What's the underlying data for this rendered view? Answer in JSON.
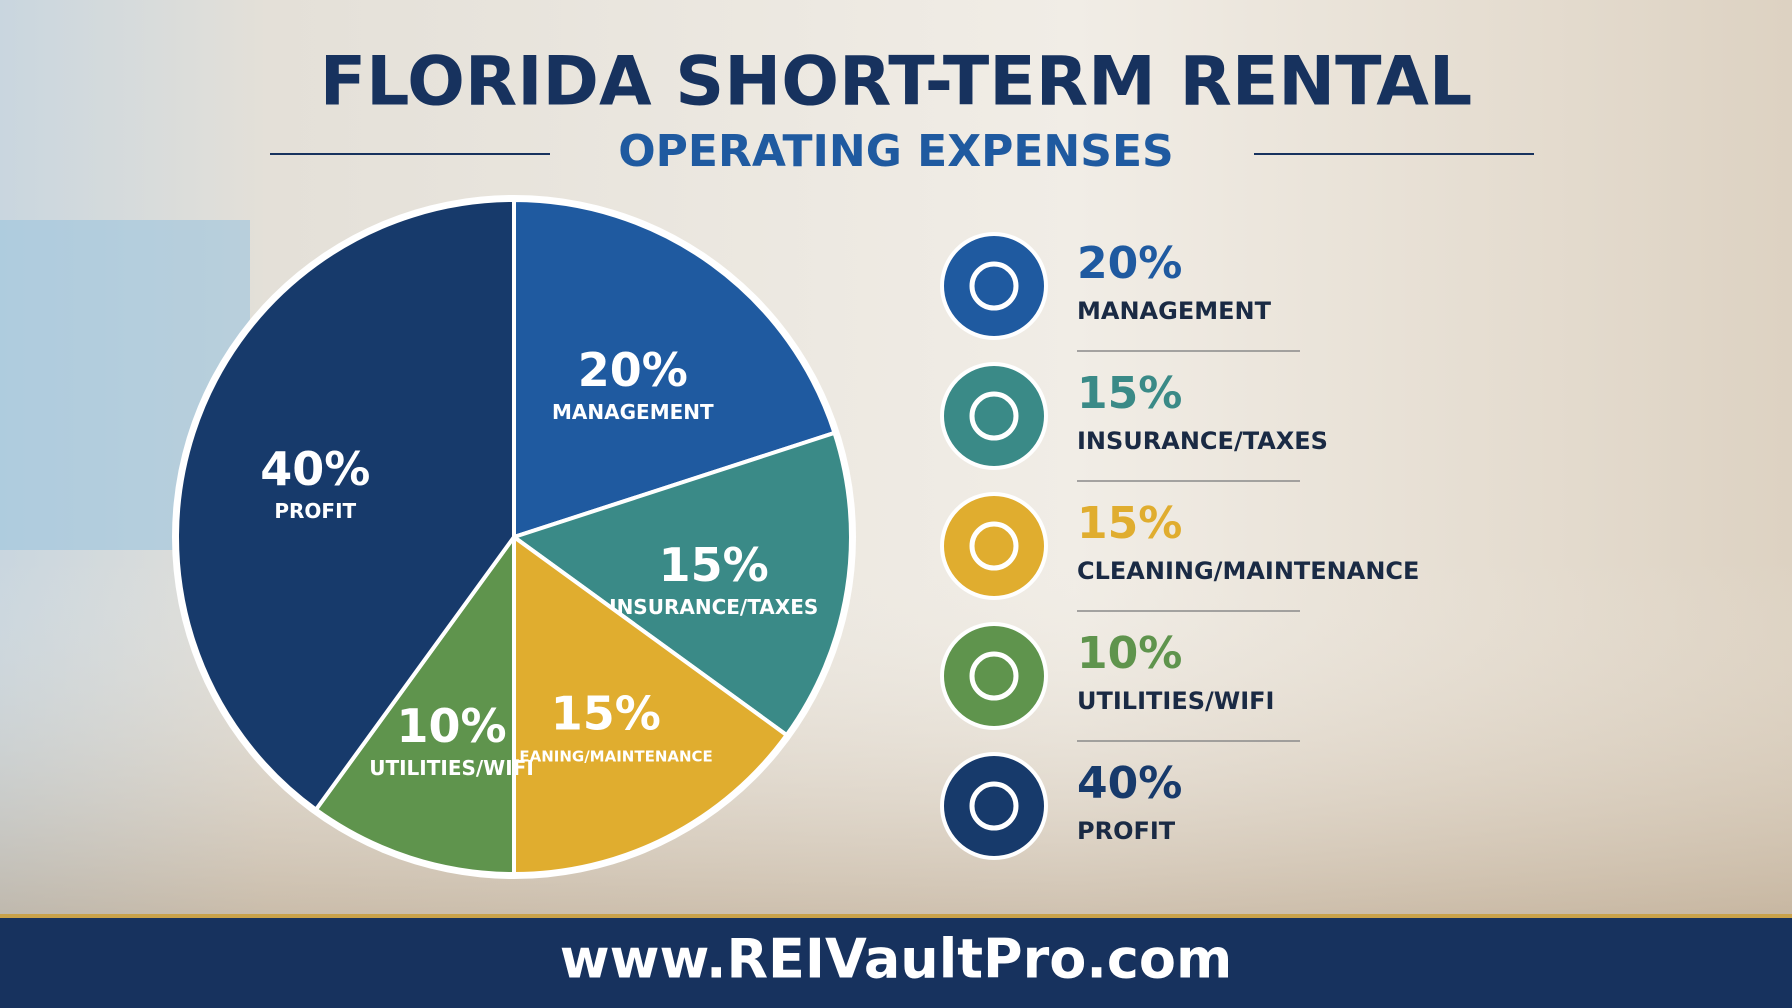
{
  "chart_data": {
    "type": "pie",
    "title": "FLORIDA SHORT-TERM RENTAL",
    "subtitle": "OPERATING EXPENSES",
    "categories": [
      "MANAGEMENT",
      "INSURANCE/TAXES",
      "CLEANING/MAINTENANCE",
      "UTILITIES/WIFI",
      "PROFIT"
    ],
    "values": [
      20,
      15,
      15,
      10,
      40
    ],
    "value_labels": [
      "20%",
      "15%",
      "15%",
      "10%",
      "40%"
    ],
    "colors": [
      "#1f5aa0",
      "#3a8a87",
      "#e0ad2f",
      "#5f944d",
      "#173a6b"
    ]
  },
  "footer": "www.REIVaultPro.com"
}
